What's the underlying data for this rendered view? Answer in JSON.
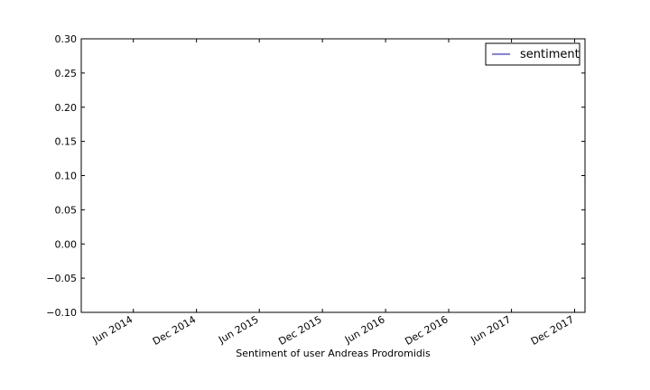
{
  "chart_data": {
    "type": "line",
    "xlabel": "Sentiment of user Andreas Prodromidis",
    "ylabel": "",
    "title": "",
    "xlim": [
      "2014-01-01",
      "2017-12-31"
    ],
    "ylim": [
      -0.1,
      0.3
    ],
    "x_ticks": [
      {
        "date": "2014-06-01",
        "label": "Jun 2014"
      },
      {
        "date": "2014-12-01",
        "label": "Dec 2014"
      },
      {
        "date": "2015-06-01",
        "label": "Jun 2015"
      },
      {
        "date": "2015-12-01",
        "label": "Dec 2015"
      },
      {
        "date": "2016-06-01",
        "label": "Jun 2016"
      },
      {
        "date": "2016-12-01",
        "label": "Dec 2016"
      },
      {
        "date": "2017-06-01",
        "label": "Jun 2017"
      },
      {
        "date": "2017-12-01",
        "label": "Dec 2017"
      }
    ],
    "y_ticks": [
      {
        "value": 0.3,
        "label": "0.30"
      },
      {
        "value": 0.25,
        "label": "0.25"
      },
      {
        "value": 0.2,
        "label": "0.20"
      },
      {
        "value": 0.15,
        "label": "0.15"
      },
      {
        "value": 0.1,
        "label": "0.10"
      },
      {
        "value": 0.05,
        "label": "0.05"
      },
      {
        "value": 0.0,
        "label": "0.00"
      },
      {
        "value": -0.05,
        "label": "−0.05"
      },
      {
        "value": -0.1,
        "label": "−0.10"
      }
    ],
    "series": [
      {
        "name": "sentiment",
        "color": "#0000ff",
        "x": [],
        "y": []
      }
    ],
    "legend": {
      "placement": "top-right"
    },
    "grid": false
  }
}
